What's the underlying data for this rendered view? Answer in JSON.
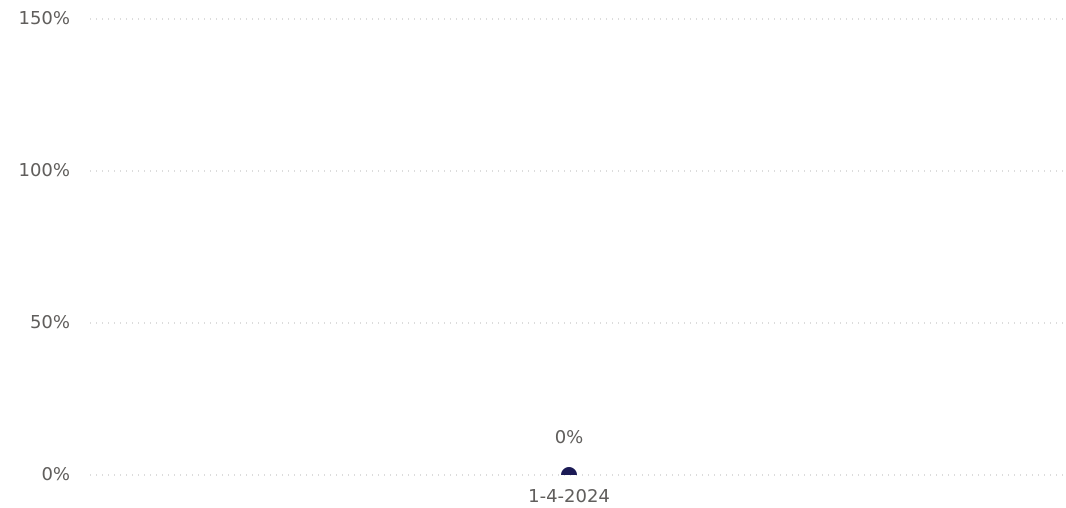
{
  "chart_data": {
    "type": "line",
    "categories": [
      "1-4-2024"
    ],
    "values": [
      0
    ],
    "value_labels": [
      "0%"
    ],
    "color": "#1b1a55",
    "ylim": [
      0,
      150
    ],
    "yticks": [
      {
        "value": 0,
        "label": "0%"
      },
      {
        "value": 50,
        "label": "50%"
      },
      {
        "value": 100,
        "label": "100%"
      },
      {
        "value": 150,
        "label": "150%"
      }
    ],
    "grid": true
  }
}
